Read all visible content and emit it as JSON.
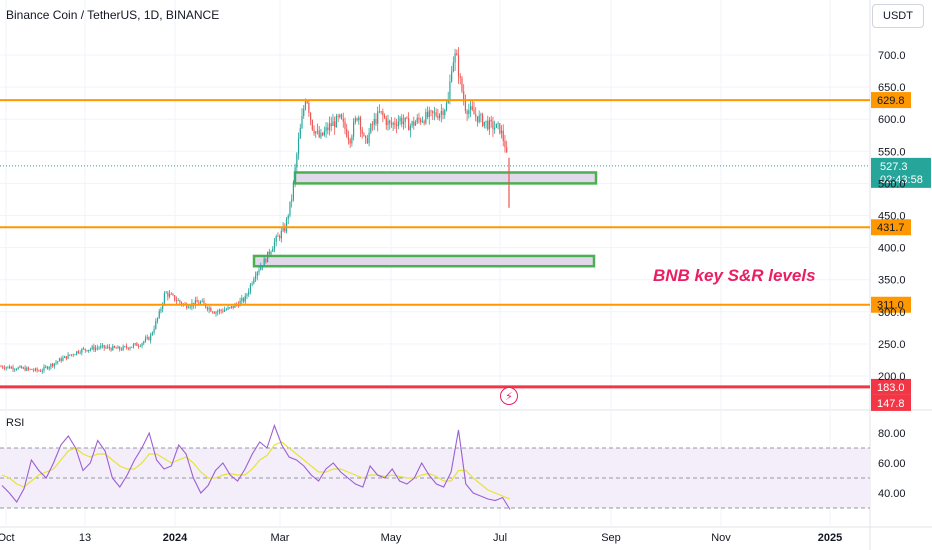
{
  "header": {
    "title": "Binance Coin / TetherUS, 1D, BINANCE",
    "currency": "USDT"
  },
  "annotation": "BNB key S&R levels",
  "rsi_panel": {
    "label": "RSI"
  },
  "colors": {
    "up": "#26a69a",
    "down": "#ef5350",
    "level": "#ff9800",
    "support_red": "#f23645",
    "zone_border": "#4caf50",
    "zone_fill": "#e1d8ec",
    "rsi_line": "#9c5fd1",
    "rsi_ma": "#e8e337",
    "rsi_band": "#f3eefa"
  },
  "chart_data": [
    {
      "type": "candlestick",
      "title": "Binance Coin / TetherUS, 1D, BINANCE",
      "x_ticks": [
        "Oct",
        "13",
        "2024",
        "Mar",
        "May",
        "Jul",
        "Sep",
        "Nov",
        "2025"
      ],
      "y_ticks": [
        "200.0",
        "250.0",
        "300.0",
        "350.0",
        "400.0",
        "450.0",
        "500.0",
        "550.0",
        "600.0",
        "650.0",
        "700.0"
      ],
      "ylim": [
        140,
        735
      ],
      "price_series_approx": [
        {
          "date": "2023-10",
          "close": 212
        },
        {
          "date": "2023-11",
          "close": 240
        },
        {
          "date": "2023-12",
          "close": 255
        },
        {
          "date": "2023-12-late",
          "close": 320
        },
        {
          "date": "2024-01",
          "close": 305
        },
        {
          "date": "2024-02",
          "close": 370
        },
        {
          "date": "2024-03",
          "close": 560
        },
        {
          "date": "2024-04",
          "close": 580
        },
        {
          "date": "2024-05",
          "close": 600
        },
        {
          "date": "2024-06-05",
          "close": 700
        },
        {
          "date": "2024-06",
          "close": 595
        },
        {
          "date": "2024-07",
          "close": 527.3
        }
      ],
      "horizontal_levels": [
        {
          "value": 629.8,
          "label": "629.8",
          "color": "#ff9800"
        },
        {
          "value": 431.7,
          "label": "431.7",
          "color": "#ff9800"
        },
        {
          "value": 311.0,
          "label": "311.0",
          "color": "#ff9800"
        },
        {
          "value": 183.0,
          "label": "183.0",
          "color": "#f23645"
        }
      ],
      "zones": [
        {
          "low": 500,
          "high": 517
        },
        {
          "low": 371,
          "high": 387
        }
      ],
      "last_price": {
        "value": 527.3,
        "label": "527.3",
        "countdown": "02:43:58"
      },
      "extra_price_label": "147.8",
      "legend": "none",
      "grid": true
    },
    {
      "type": "line",
      "title": "RSI",
      "y_ticks": [
        "40.00",
        "60.00",
        "80.00"
      ],
      "ylim": [
        25,
        95
      ],
      "overbought": 70,
      "mid": 50,
      "oversold": 30,
      "last_value": 29,
      "series": [
        {
          "values": [
            45,
            40,
            34,
            43,
            62,
            55,
            50,
            60,
            72,
            78,
            70,
            55,
            60,
            75,
            68,
            50,
            44,
            52,
            62,
            70,
            80,
            62,
            56,
            58,
            72,
            66,
            50,
            40,
            45,
            55,
            60,
            52,
            48,
            56,
            66,
            74,
            70,
            85,
            72,
            64,
            62,
            58,
            52,
            48,
            56,
            60,
            54,
            50,
            46,
            44,
            58,
            52,
            50,
            56,
            48,
            46,
            50,
            60,
            52,
            46,
            44,
            54,
            82,
            46,
            40,
            38,
            36,
            35,
            37,
            29
          ]
        },
        {
          "values": [
            52,
            50,
            46,
            44,
            48,
            52,
            54,
            56,
            62,
            68,
            70,
            66,
            64,
            66,
            66,
            62,
            58,
            56,
            56,
            60,
            66,
            66,
            63,
            60,
            62,
            64,
            60,
            54,
            50,
            50,
            52,
            53,
            52,
            52,
            56,
            62,
            65,
            72,
            74,
            70,
            66,
            62,
            58,
            54,
            54,
            56,
            56,
            54,
            52,
            50,
            52,
            52,
            51,
            52,
            51,
            50,
            50,
            52,
            53,
            51,
            48,
            48,
            55,
            55,
            50,
            46,
            42,
            40,
            38,
            36
          ]
        }
      ]
    }
  ]
}
